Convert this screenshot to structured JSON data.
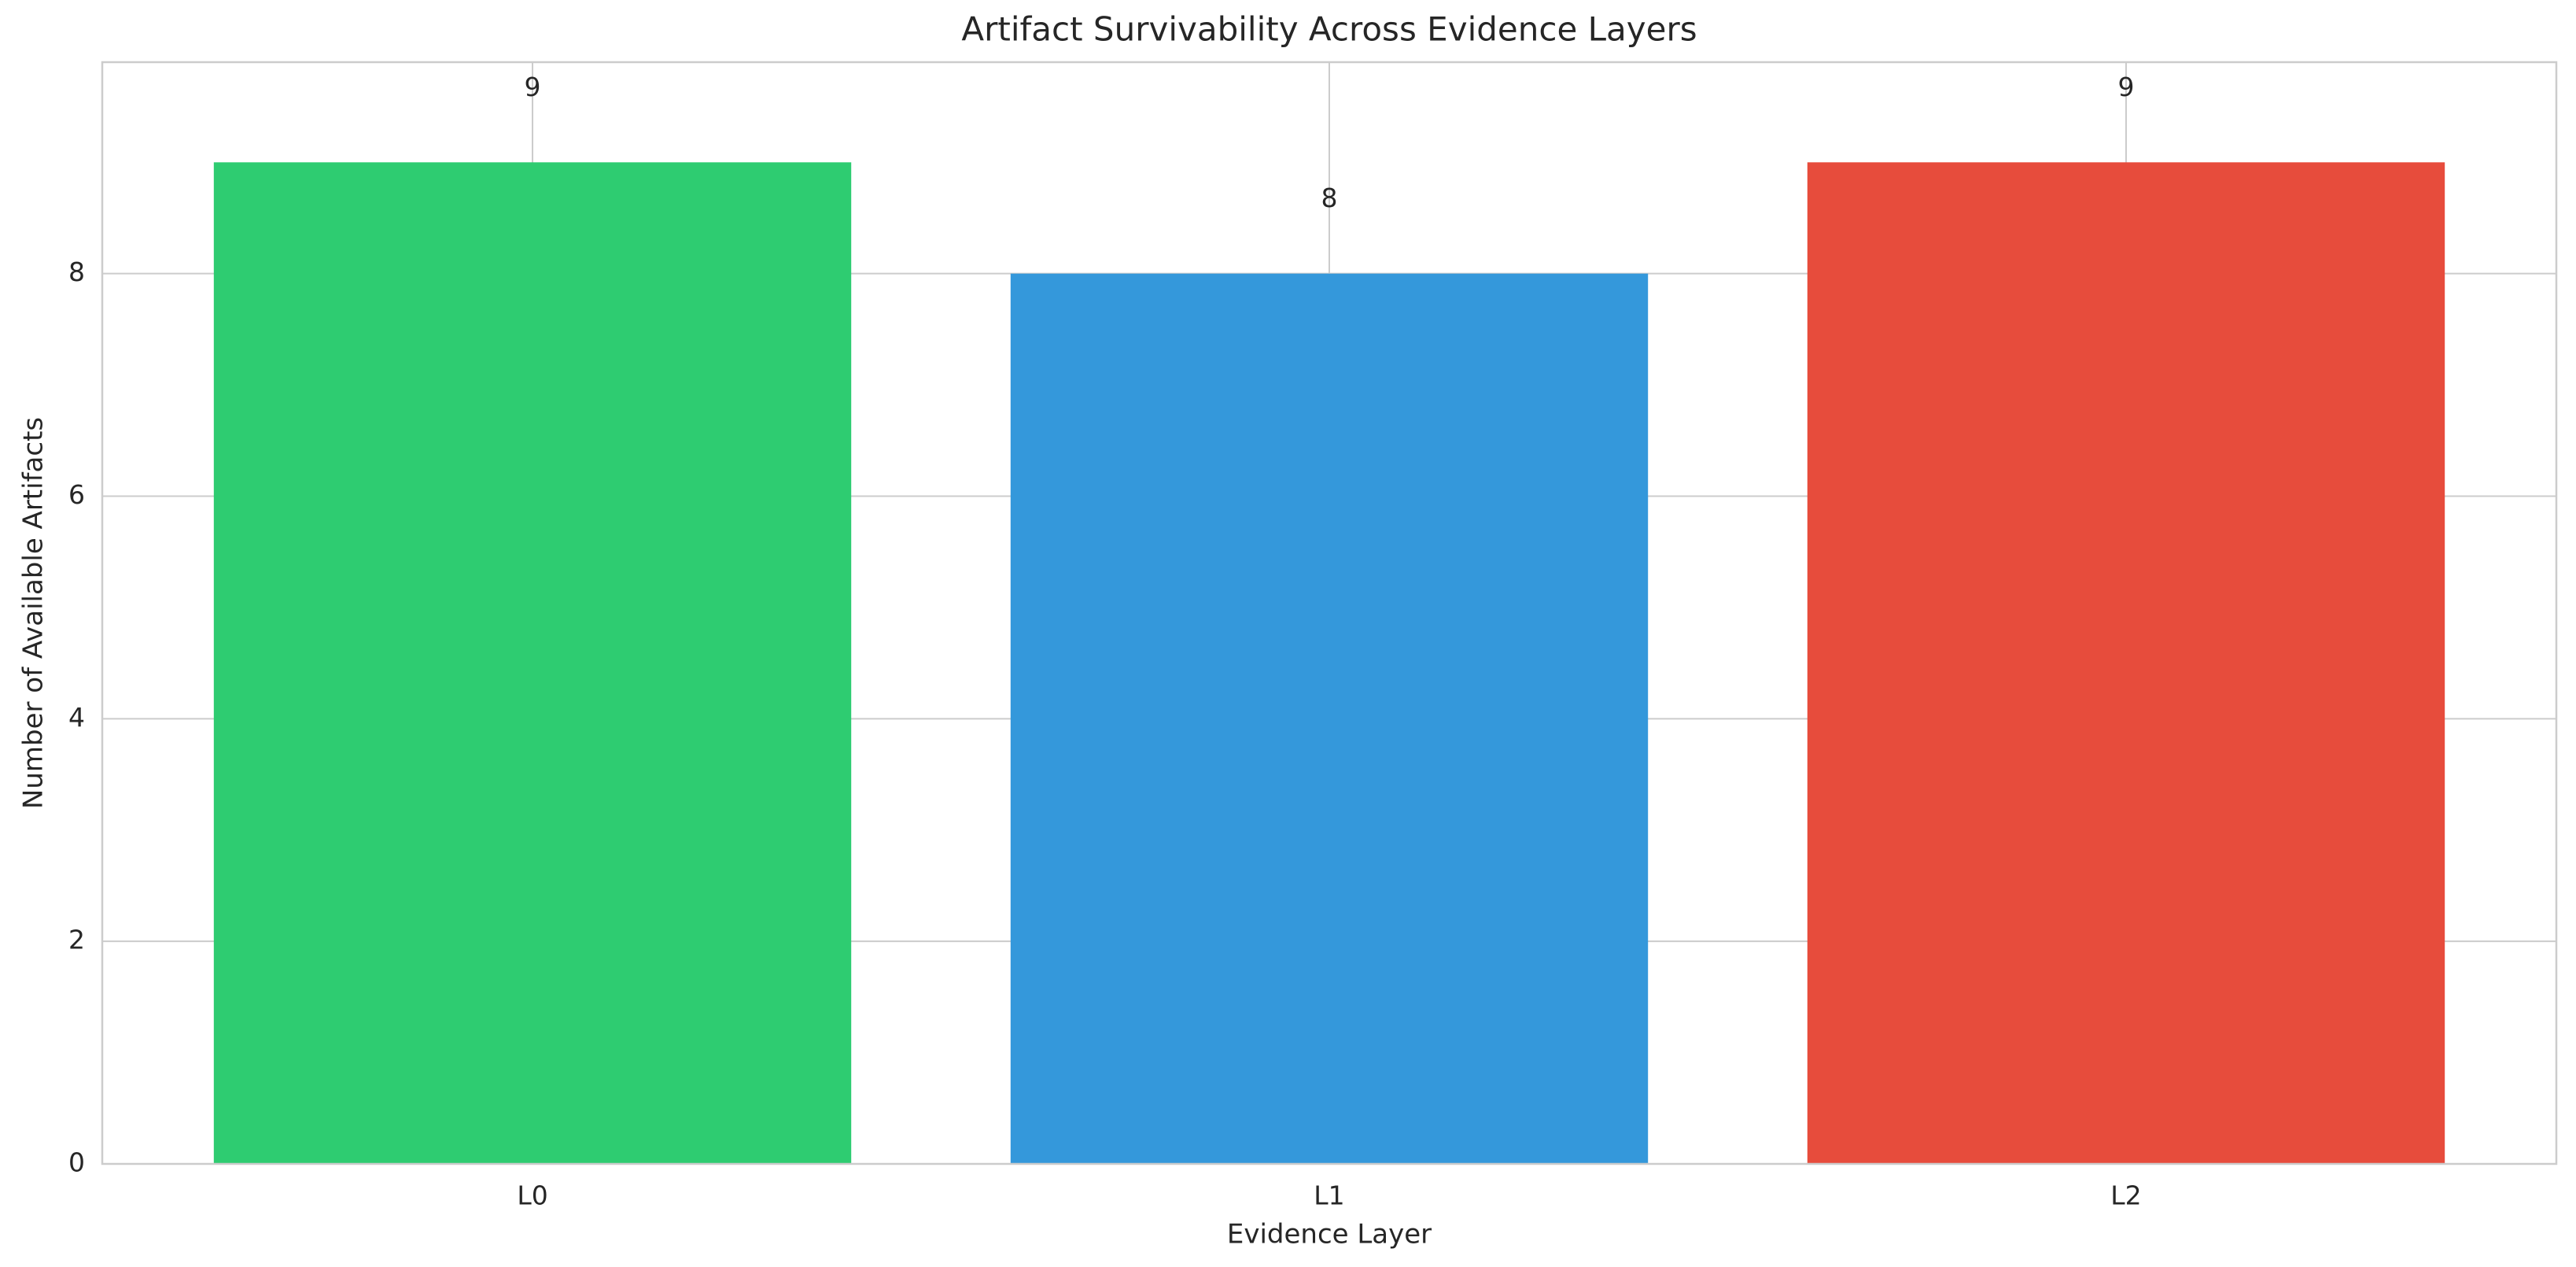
{
  "chart_data": {
    "type": "bar",
    "title": "Artifact Survivability Across Evidence Layers",
    "xlabel": "Evidence Layer",
    "ylabel": "Number of Available Artifacts",
    "categories": [
      "L0",
      "L1",
      "L2"
    ],
    "values": [
      9,
      8,
      9
    ],
    "colors": [
      "#2ecc71",
      "#3498db",
      "#e74c3c"
    ],
    "ylim": [
      0,
      9.9
    ],
    "yticks": [
      0,
      2,
      4,
      6,
      8
    ],
    "grid": true
  }
}
